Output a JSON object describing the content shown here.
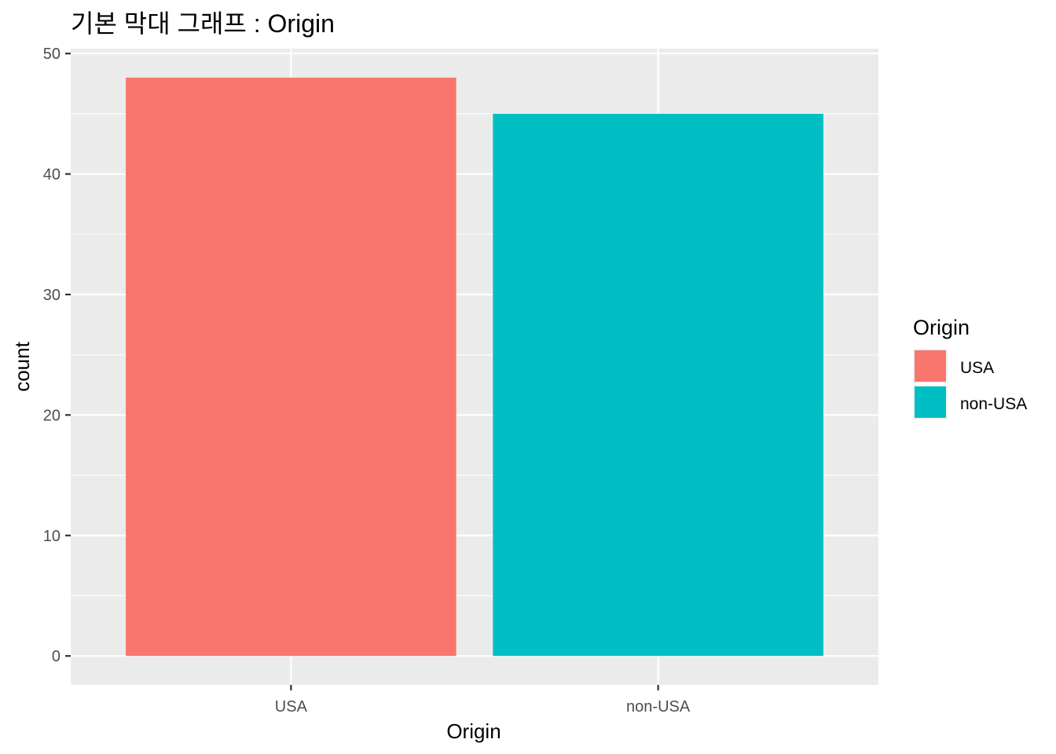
{
  "chart_data": {
    "type": "bar",
    "title": "기본 막대 그래프 : Origin",
    "xlabel": "Origin",
    "ylabel": "count",
    "categories": [
      "USA",
      "non-USA"
    ],
    "values": [
      48,
      45
    ],
    "colors": [
      "#F8766D",
      "#00BFC4"
    ],
    "ylim": [
      -2.4,
      50.4
    ],
    "yticks": [
      0,
      10,
      20,
      30,
      40,
      50
    ],
    "grid": true,
    "panel_background": "#EBEBEB",
    "legend": {
      "title": "Origin",
      "position": "right",
      "entries": [
        {
          "label": "USA",
          "color": "#F8766D"
        },
        {
          "label": "non-USA",
          "color": "#00BFC4"
        }
      ]
    }
  }
}
